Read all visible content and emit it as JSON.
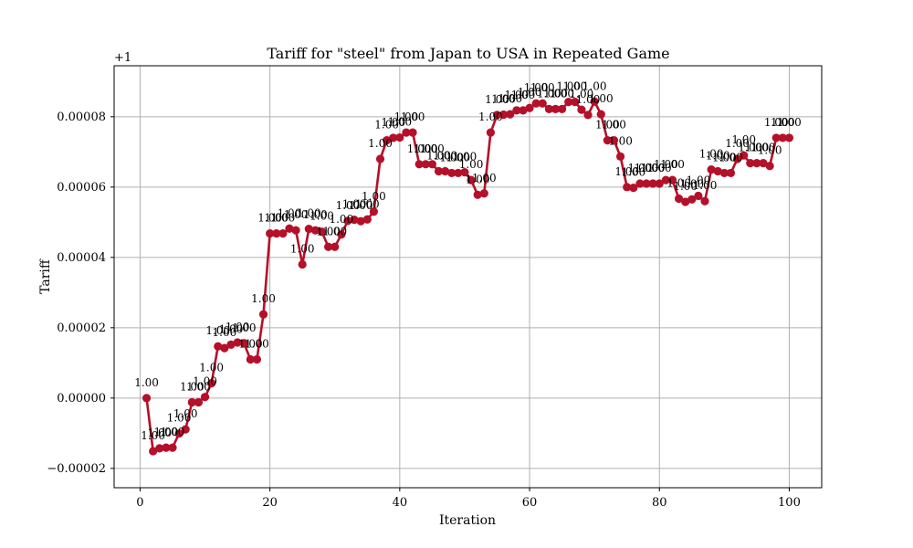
{
  "chart_data": {
    "type": "line",
    "title": "Tariff for \"steel\" from Japan to USA in Repeated Game",
    "xlabel": "Iteration",
    "ylabel": "Tariff",
    "offset_label": "+1",
    "xlim": [
      -4,
      105
    ],
    "ylim": [
      -2.55e-05,
      9.45e-05
    ],
    "xticks": [
      0,
      20,
      40,
      60,
      80,
      100
    ],
    "yticks": [
      -2e-05,
      0,
      2e-05,
      4e-05,
      6e-05,
      8e-05
    ],
    "ytick_labels": [
      "−0.00002",
      "0.00000",
      "0.00002",
      "0.00004",
      "0.00006",
      "0.00008"
    ],
    "grid": true,
    "series_color": "#b5102a",
    "point_label": "1.00",
    "x": [
      1,
      2,
      3,
      4,
      5,
      6,
      7,
      8,
      9,
      10,
      11,
      12,
      13,
      14,
      15,
      16,
      17,
      18,
      19,
      20,
      21,
      22,
      23,
      24,
      25,
      26,
      27,
      28,
      29,
      30,
      31,
      32,
      33,
      34,
      35,
      36,
      37,
      38,
      39,
      40,
      41,
      42,
      43,
      44,
      45,
      46,
      47,
      48,
      49,
      50,
      51,
      52,
      53,
      54,
      55,
      56,
      57,
      58,
      59,
      60,
      61,
      62,
      63,
      64,
      65,
      66,
      67,
      68,
      69,
      70,
      71,
      72,
      73,
      74,
      75,
      76,
      77,
      78,
      79,
      80,
      81,
      82,
      83,
      84,
      85,
      86,
      87,
      88,
      89,
      90,
      91,
      92,
      93,
      94,
      95,
      96,
      97,
      98,
      99,
      100
    ],
    "y": [
      0,
      -1.51e-05,
      -1.43e-05,
      -1.41e-05,
      -1.41e-05,
      -1.01e-05,
      -8.9e-06,
      -1.2e-06,
      -1.2e-06,
      3e-07,
      4.2e-06,
      1.47e-05,
      1.42e-05,
      1.52e-05,
      1.58e-05,
      1.56e-05,
      1.1e-05,
      1.1e-05,
      2.38e-05,
      4.68e-05,
      4.68e-05,
      4.68e-05,
      4.82e-05,
      4.77e-05,
      3.8e-05,
      4.81e-05,
      4.77e-05,
      4.73e-05,
      4.3e-05,
      4.3e-05,
      4.65e-05,
      5.04e-05,
      5.07e-05,
      5.03e-05,
      5.08e-05,
      5.3e-05,
      6.8e-05,
      7.33e-05,
      7.4e-05,
      7.41e-05,
      7.55e-05,
      7.55e-05,
      6.65e-05,
      6.65e-05,
      6.65e-05,
      6.45e-05,
      6.45e-05,
      6.4e-05,
      6.4e-05,
      6.42e-05,
      6.2e-05,
      5.78e-05,
      5.82e-05,
      7.55e-05,
      8.05e-05,
      8.06e-05,
      8.07e-05,
      8.18e-05,
      8.18e-05,
      8.25e-05,
      8.38e-05,
      8.38e-05,
      8.22e-05,
      8.22e-05,
      8.22e-05,
      8.42e-05,
      8.42e-05,
      8.2e-05,
      8.05e-05,
      8.43e-05,
      8.07e-05,
      7.33e-05,
      7.33e-05,
      6.87e-05,
      6e-05,
      5.98e-05,
      6.1e-05,
      6.1e-05,
      6.1e-05,
      6.1e-05,
      6.2e-05,
      6.2e-05,
      5.67e-05,
      5.58e-05,
      5.65e-05,
      5.75e-05,
      5.6e-05,
      6.5e-05,
      6.45e-05,
      6.4e-05,
      6.4e-05,
      6.8e-05,
      6.9e-05,
      6.68e-05,
      6.68e-05,
      6.68e-05,
      6.6e-05,
      7.4e-05,
      7.4e-05,
      7.4e-05
    ]
  }
}
